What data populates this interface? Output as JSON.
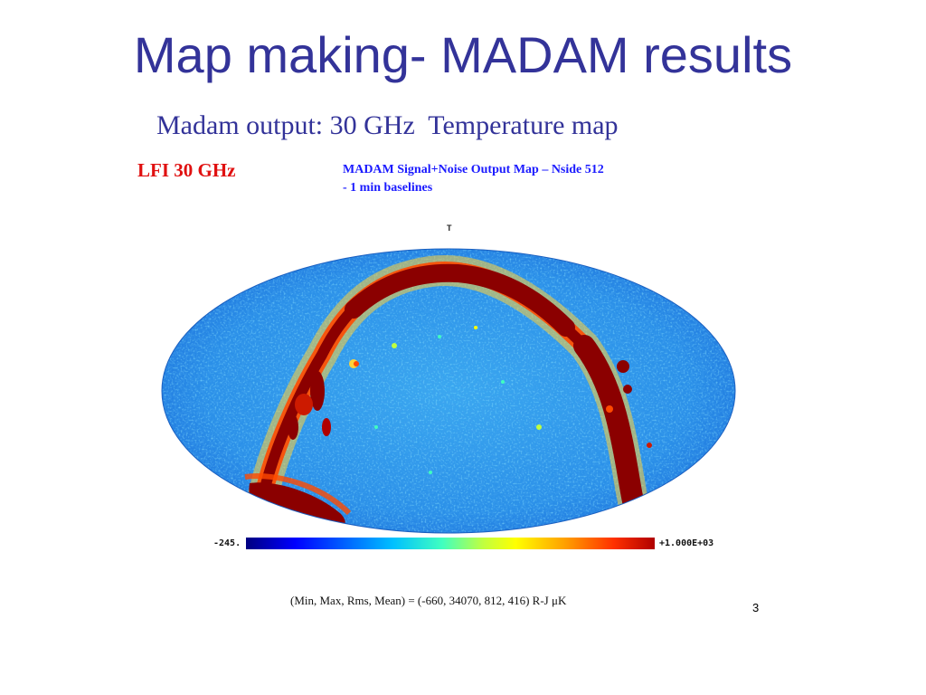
{
  "slide": {
    "title": "Map making- MADAM results",
    "subtitle": "Madam output: 30 GHz  Temperature map",
    "lfi_label": "LFI 30 GHz",
    "caption_line1": "MADAM Signal+Noise Output Map – Nside 512",
    "caption_line2": "- 1 min baselines",
    "page_number": "3"
  },
  "map": {
    "stokes_label": "T",
    "colorbar_min": "-245.",
    "colorbar_max": "+1.000E+03",
    "stats": "(Min, Max, Rms, Mean) = (-660, 34070, 812, 416) R-J μK",
    "colors": {
      "background": "#2a8fe8",
      "galactic_plane": "#8b0000",
      "halo": "#ff4a00"
    }
  }
}
